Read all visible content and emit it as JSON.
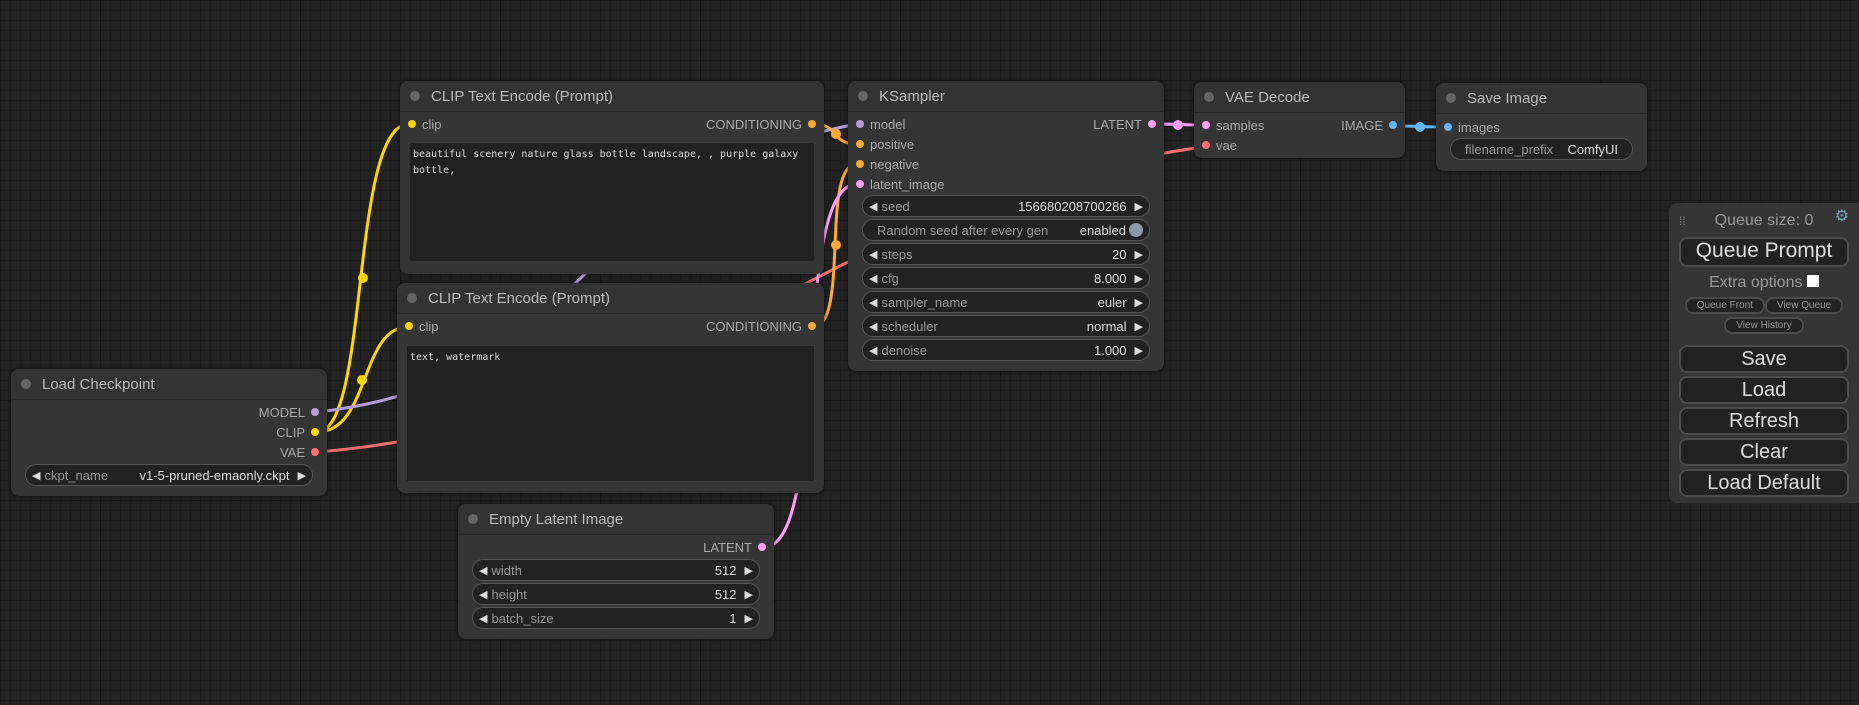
{
  "colors": {
    "clip": "#ffd500",
    "model": "#b39ddb",
    "vae": "#ff6e6e",
    "conditioning": "#ffa931",
    "latent": "#ff9cf9",
    "image": "#64b5f6"
  },
  "nodes": {
    "load_checkpoint": {
      "title": "Load Checkpoint",
      "outputs": [
        "MODEL",
        "CLIP",
        "VAE"
      ],
      "ckpt_name_label": "ckpt_name",
      "ckpt_name": "v1-5-pruned-emaonly.ckpt"
    },
    "clip_pos": {
      "title": "CLIP Text Encode (Prompt)",
      "input": "clip",
      "output": "CONDITIONING",
      "text": "beautiful scenery nature glass bottle landscape, , purple galaxy bottle,"
    },
    "clip_neg": {
      "title": "CLIP Text Encode (Prompt)",
      "input": "clip",
      "output": "CONDITIONING",
      "text": "text, watermark"
    },
    "empty_latent": {
      "title": "Empty Latent Image",
      "output": "LATENT",
      "widgets": [
        {
          "label": "width",
          "value": "512"
        },
        {
          "label": "height",
          "value": "512"
        },
        {
          "label": "batch_size",
          "value": "1"
        }
      ]
    },
    "ksampler": {
      "title": "KSampler",
      "inputs": [
        "model",
        "positive",
        "negative",
        "latent_image"
      ],
      "output": "LATENT",
      "seed_label": "seed",
      "seed": "156680208700286",
      "random_label": "Random seed after every gen",
      "random_value": "enabled",
      "widgets": [
        {
          "label": "steps",
          "value": "20"
        },
        {
          "label": "cfg",
          "value": "8.000"
        },
        {
          "label": "sampler_name",
          "value": "euler"
        },
        {
          "label": "scheduler",
          "value": "normal"
        },
        {
          "label": "denoise",
          "value": "1.000"
        }
      ]
    },
    "vae_decode": {
      "title": "VAE Decode",
      "inputs": [
        "samples",
        "vae"
      ],
      "output": "IMAGE"
    },
    "save_image": {
      "title": "Save Image",
      "input": "images",
      "prefix_label": "filename_prefix",
      "prefix": "ComfyUI"
    }
  },
  "menu": {
    "queue_size": "Queue size: 0",
    "queue_prompt": "Queue Prompt",
    "extra_options": "Extra options",
    "extra_checked": false,
    "queue_front": "Queue Front",
    "view_queue": "View Queue",
    "view_history": "View History",
    "save": "Save",
    "load": "Load",
    "refresh": "Refresh",
    "clear": "Clear",
    "load_default": "Load Default"
  }
}
